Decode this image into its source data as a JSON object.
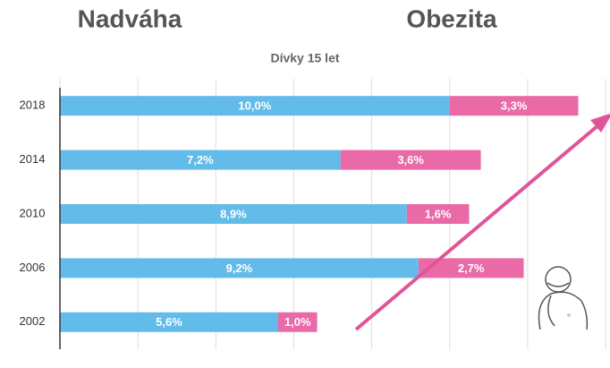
{
  "chart_data": {
    "type": "bar",
    "orientation": "horizontal",
    "stacked": true,
    "subtitle": "Dívky 15 let",
    "categories": [
      "2018",
      "2014",
      "2010",
      "2006",
      "2002"
    ],
    "series": [
      {
        "name": "Nadváha",
        "color": "#63bbea",
        "values": [
          10.0,
          7.2,
          8.9,
          9.2,
          5.6
        ],
        "value_labels": [
          "10,0%",
          "7,2%",
          "8,9%",
          "9,2%",
          "5,6%"
        ]
      },
      {
        "name": "Obezita",
        "color": "#e96aa6",
        "values": [
          3.3,
          3.6,
          1.6,
          2.7,
          1.0
        ],
        "value_labels": [
          "3,3%",
          "3,6%",
          "1,6%",
          "2,7%",
          "1,0%"
        ]
      }
    ],
    "xlim": [
      0,
      14
    ],
    "xticks": [
      0,
      2,
      4,
      6,
      8,
      10,
      12,
      14
    ],
    "grid": true
  }
}
